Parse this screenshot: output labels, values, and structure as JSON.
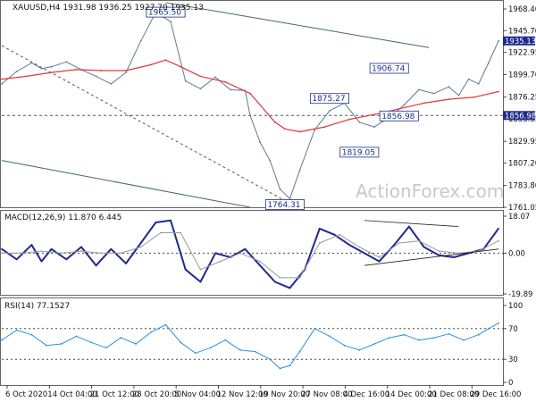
{
  "chart_data": [
    {
      "type": "line",
      "title": "XAUUSD,H4  1931.98 1936.25 1927.70 1935.13",
      "x_ticks": [
        "6 Oct 2020",
        "14 Oct 04:00",
        "21 Oct 12:00",
        "28 Oct 20:00",
        "5 Nov 04:00",
        "12 Nov 12:00",
        "19 Nov 20:00",
        "27 Nov 08:00",
        "4 Dec 16:00",
        "14 Dec 00:00",
        "21 Dec 08:00",
        "29 Dec 16:00"
      ],
      "y_ticks": [
        1968.4,
        1945.7,
        1922.95,
        1899.7,
        1876.25,
        1853.55,
        1829.95,
        1807.2,
        1783.8,
        1761.05
      ],
      "ylim": [
        1761.05,
        1968.4
      ],
      "series": [
        {
          "name": "",
          "x": [
            0,
            3,
            6,
            8,
            10,
            13,
            16,
            19,
            22,
            25,
            28,
            31,
            34,
            37,
            40,
            43,
            46,
            49,
            50,
            52,
            54,
            56,
            58,
            60,
            63,
            66,
            69,
            72,
            75,
            78,
            81,
            84,
            87,
            90,
            92,
            94,
            96,
            98,
            100
          ],
          "values": [
            1890,
            1903,
            1912,
            1906,
            1908,
            1913,
            1905,
            1898,
            1890,
            1902,
            1935,
            1965,
            1955,
            1893,
            1885,
            1897,
            1884,
            1883,
            1857,
            1829,
            1810,
            1780,
            1770,
            1800,
            1842,
            1862,
            1870,
            1850,
            1845,
            1855,
            1868,
            1884,
            1880,
            1887,
            1878,
            1895,
            1890,
            1912,
            1935
          ]
        },
        {
          "name": "",
          "x": [
            0,
            5,
            10,
            15,
            20,
            25,
            30,
            33,
            36,
            40,
            45,
            50,
            55,
            57,
            60,
            65,
            70,
            75,
            80,
            85,
            90,
            95,
            100
          ],
          "values": [
            1895,
            1898,
            1902,
            1905,
            1904,
            1904,
            1910,
            1915,
            1908,
            1898,
            1892,
            1880,
            1850,
            1843,
            1840,
            1845,
            1853,
            1858,
            1864,
            1870,
            1874,
            1876,
            1882
          ]
        }
      ],
      "annotations": [
        {
          "text": "1965.50",
          "x": 33,
          "y": 1965.5
        },
        {
          "text": "1764.31",
          "x": 57,
          "y": 1764.31
        },
        {
          "text": "1875.27",
          "x": 66,
          "y": 1875.27
        },
        {
          "text": "1819.05",
          "x": 72,
          "y": 1819.05
        },
        {
          "text": "1906.74",
          "x": 78,
          "y": 1906.74
        },
        {
          "text": "1856.98",
          "x": 80,
          "y": 1856.98
        }
      ],
      "price_labels": [
        "1935.13",
        "1856.98"
      ],
      "hline": 1856.98,
      "trendlines": [
        {
          "x1": 33,
          "y1": 1975,
          "x2": 86,
          "y2": 1928
        },
        {
          "x1": 0,
          "y1": 1930,
          "x2": 57,
          "y2": 1768
        },
        {
          "x1": 0,
          "y1": 1810,
          "x2": 50,
          "y2": 1761
        }
      ],
      "watermark": "ActionForex.com"
    },
    {
      "type": "line",
      "title": "MACD(12,26,9) 11.870 6.445",
      "y_ticks": [
        18.07,
        0.0,
        -19.89
      ],
      "ylim": [
        -19.89,
        18.07
      ],
      "series": [
        {
          "name": "",
          "x": [
            0,
            3,
            6,
            8,
            10,
            13,
            16,
            19,
            22,
            25,
            28,
            31,
            34,
            37,
            40,
            43,
            46,
            49,
            52,
            55,
            58,
            61,
            64,
            67,
            70,
            73,
            76,
            79,
            82,
            85,
            88,
            91,
            94,
            97,
            100
          ],
          "values": [
            2,
            -3,
            4,
            -4,
            2,
            -3,
            3,
            -6,
            2,
            -5,
            5,
            15,
            16,
            -8,
            -14,
            0,
            -2,
            2,
            -6,
            -14,
            -17,
            -8,
            12,
            9,
            4,
            0,
            -4,
            4,
            13,
            3,
            -1,
            -2,
            0,
            2,
            12
          ]
        },
        {
          "name": "",
          "x": [
            0,
            4,
            8,
            12,
            16,
            20,
            24,
            28,
            32,
            36,
            40,
            44,
            48,
            52,
            56,
            60,
            64,
            68,
            72,
            76,
            80,
            84,
            88,
            92,
            96,
            100
          ],
          "values": [
            0,
            0,
            1,
            0,
            1,
            0,
            0,
            3,
            10,
            10,
            -8,
            -4,
            0,
            -4,
            -12,
            -12,
            5,
            9,
            3,
            -2,
            5,
            6,
            1,
            0,
            1,
            6
          ]
        }
      ]
    },
    {
      "type": "line",
      "title": "RSI(14) 77.1527",
      "y_ticks": [
        100,
        70,
        30,
        0
      ],
      "ylim": [
        0,
        100
      ],
      "series": [
        {
          "name": "",
          "x": [
            0,
            3,
            6,
            9,
            12,
            15,
            18,
            21,
            24,
            27,
            30,
            33,
            36,
            39,
            42,
            45,
            48,
            51,
            54,
            56,
            58,
            60,
            63,
            66,
            69,
            72,
            75,
            78,
            81,
            84,
            87,
            90,
            93,
            96,
            98,
            100
          ],
          "values": [
            55,
            68,
            62,
            48,
            50,
            60,
            52,
            45,
            58,
            50,
            65,
            75,
            52,
            38,
            45,
            55,
            42,
            40,
            30,
            18,
            22,
            40,
            70,
            60,
            48,
            42,
            50,
            58,
            62,
            55,
            58,
            63,
            55,
            62,
            70,
            77
          ]
        }
      ]
    }
  ]
}
